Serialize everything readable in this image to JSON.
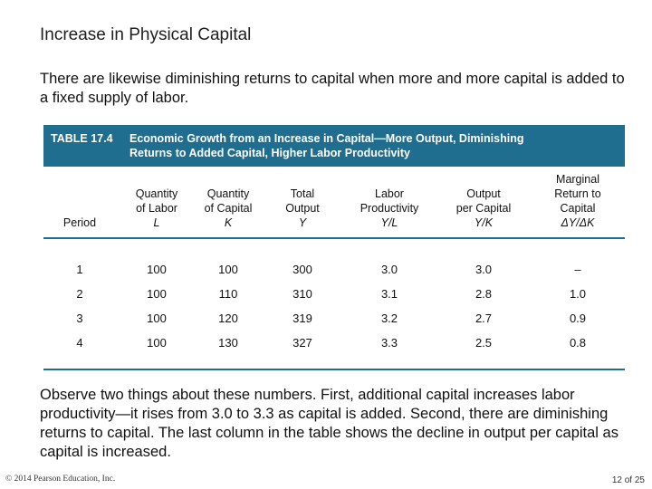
{
  "slide": {
    "title": "Increase in Physical Capital",
    "intro": "There are likewise diminishing returns to capital when more and more capital is added to a fixed supply of labor.",
    "observe": "Observe two things about these numbers. First, additional capital increases labor productivity—it rises from 3.0 to 3.3 as capital is added. Second, there are diminishing returns to capital. The last column in the table shows the decline in output per capital as capital is increased.",
    "copyright": "© 2014 Pearson Education, Inc.",
    "slide_number": "12 of 25"
  },
  "table": {
    "label": "TABLE 17.4",
    "title_line1": "Economic Growth from an Increase in Capital—More Output, Diminishing",
    "title_line2": "Returns to Added Capital, Higher Labor Productivity",
    "columns": [
      {
        "lines": [
          "Period"
        ],
        "symbol": ""
      },
      {
        "lines": [
          "Quantity",
          "of Labor"
        ],
        "symbol": "L"
      },
      {
        "lines": [
          "Quantity",
          "of Capital"
        ],
        "symbol": "K"
      },
      {
        "lines": [
          "Total",
          "Output"
        ],
        "symbol": "Y"
      },
      {
        "lines": [
          "Labor",
          "Productivity"
        ],
        "symbol": "Y/L"
      },
      {
        "lines": [
          "Output",
          "per Capital"
        ],
        "symbol": "Y/K"
      },
      {
        "lines": [
          "Marginal",
          "Return to",
          "Capital"
        ],
        "symbol": "ΔY/ΔK"
      }
    ],
    "rows": [
      [
        "1",
        "100",
        "100",
        "300",
        "3.0",
        "3.0",
        "–"
      ],
      [
        "2",
        "100",
        "110",
        "310",
        "3.1",
        "2.8",
        "1.0"
      ],
      [
        "3",
        "100",
        "120",
        "319",
        "3.2",
        "2.7",
        "0.9"
      ],
      [
        "4",
        "100",
        "130",
        "327",
        "3.3",
        "2.5",
        "0.8"
      ]
    ]
  }
}
